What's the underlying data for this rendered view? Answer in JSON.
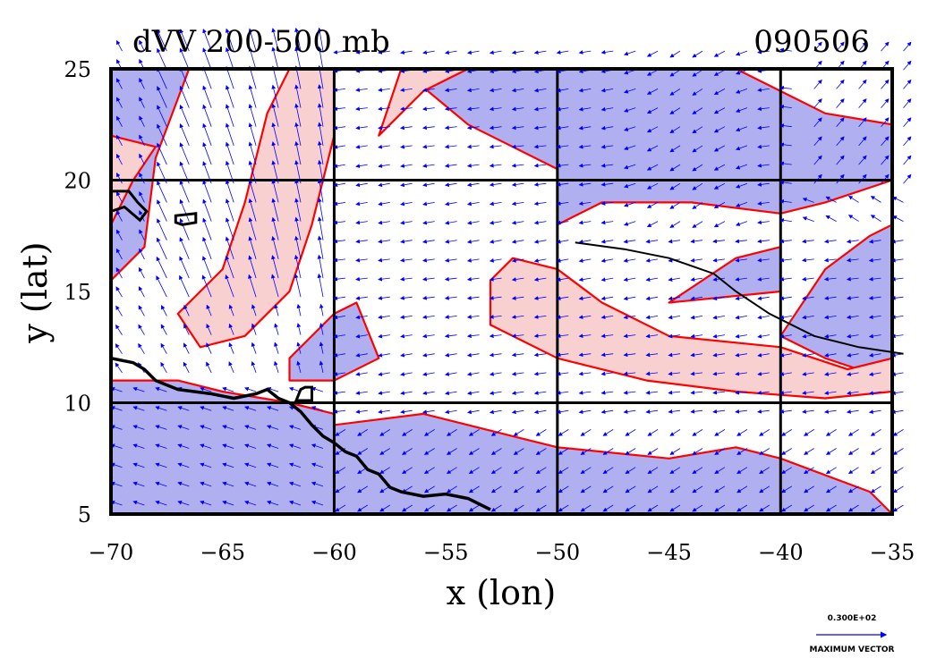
{
  "chart_data": {
    "type": "vector-contour-map",
    "title": "dVV 200-500 mb",
    "date_label": "090506",
    "xlabel": "x (lon)",
    "ylabel": "y (lat)",
    "xlim": [
      -70,
      -35
    ],
    "ylim": [
      5,
      25
    ],
    "x_ticks": [
      -70,
      -65,
      -60,
      -55,
      -50,
      -45,
      -40,
      -35
    ],
    "y_ticks": [
      5,
      10,
      15,
      20,
      25
    ],
    "x_tick_labels": [
      "−70",
      "−65",
      "−60",
      "−55",
      "−50",
      "−45",
      "−40",
      "−35"
    ],
    "y_tick_labels": [
      "5",
      "10",
      "15",
      "20",
      "25"
    ],
    "grid_lon": [
      -60,
      -50,
      -40
    ],
    "grid_lat": [
      10,
      20
    ],
    "vector_legend": {
      "magnitude_label": "0.300E+02",
      "caption": "MAXIMUM VECTOR"
    },
    "colors": {
      "negative_fill": "#b0b0f0",
      "positive_fill": "#f8d0d0",
      "contour": "#ff0000",
      "vector": "#0000ff",
      "coast": "#000000"
    },
    "negative_regions": [
      [
        [
          -70,
          15.5
        ],
        [
          -68.5,
          17
        ],
        [
          -68,
          21
        ],
        [
          -66.5,
          25
        ],
        [
          -70,
          25
        ]
      ],
      [
        [
          -70,
          5
        ],
        [
          -70,
          11
        ],
        [
          -67,
          11
        ],
        [
          -65,
          10.5
        ],
        [
          -62,
          10
        ],
        [
          -60,
          9.5
        ],
        [
          -60,
          5
        ]
      ],
      [
        [
          -60,
          5
        ],
        [
          -60,
          9
        ],
        [
          -56,
          9.5
        ],
        [
          -52,
          8.5
        ],
        [
          -50,
          8
        ],
        [
          -45,
          7.5
        ],
        [
          -42,
          8
        ],
        [
          -40,
          7.5
        ],
        [
          -36,
          6
        ],
        [
          -35,
          5
        ]
      ],
      [
        [
          -50,
          18
        ],
        [
          -50,
          25
        ],
        [
          -42,
          25
        ],
        [
          -38,
          23
        ],
        [
          -35,
          22.5
        ],
        [
          -35,
          20
        ],
        [
          -38,
          19
        ],
        [
          -40,
          18.5
        ],
        [
          -44,
          19
        ],
        [
          -48,
          19
        ]
      ],
      [
        [
          -40,
          13
        ],
        [
          -38,
          16
        ],
        [
          -36,
          17.5
        ],
        [
          -35,
          18
        ],
        [
          -35,
          11
        ],
        [
          -38,
          12
        ]
      ],
      [
        [
          -62,
          12
        ],
        [
          -60,
          14
        ],
        [
          -59,
          14.5
        ],
        [
          -58,
          12
        ],
        [
          -60,
          11
        ],
        [
          -62,
          11
        ]
      ],
      [
        [
          -57,
          25
        ],
        [
          -54,
          22.5
        ],
        [
          -50,
          20.5
        ],
        [
          -50,
          25
        ]
      ],
      [
        [
          -45,
          14.5
        ],
        [
          -42,
          16.5
        ],
        [
          -40,
          17
        ],
        [
          -40,
          15
        ]
      ]
    ],
    "positive_regions": [
      [
        [
          -67,
          14
        ],
        [
          -65,
          16
        ],
        [
          -64,
          19
        ],
        [
          -63,
          23
        ],
        [
          -62,
          25
        ],
        [
          -60,
          25
        ],
        [
          -60,
          22
        ],
        [
          -61,
          18
        ],
        [
          -62,
          15
        ],
        [
          -64,
          13
        ],
        [
          -66,
          12.5
        ]
      ],
      [
        [
          -58,
          22
        ],
        [
          -56,
          24
        ],
        [
          -54,
          25
        ],
        [
          -57,
          25
        ]
      ],
      [
        [
          -53,
          15.5
        ],
        [
          -52,
          16.5
        ],
        [
          -50,
          16
        ],
        [
          -48,
          14.5
        ],
        [
          -45,
          13
        ],
        [
          -40,
          12.5
        ],
        [
          -37,
          11.5
        ],
        [
          -35,
          12
        ],
        [
          -35,
          10.5
        ],
        [
          -38,
          10.2
        ],
        [
          -42,
          10.5
        ],
        [
          -46,
          11
        ],
        [
          -50,
          12
        ],
        [
          -53,
          13.5
        ]
      ],
      [
        [
          -70,
          18
        ],
        [
          -69,
          20
        ],
        [
          -68,
          21.5
        ],
        [
          -70,
          22
        ]
      ]
    ],
    "coastline": [
      [
        -70,
        12
      ],
      [
        -69,
        11.8
      ],
      [
        -68.5,
        11.5
      ],
      [
        -68,
        11
      ],
      [
        -67,
        10.6
      ],
      [
        -65.5,
        10.4
      ],
      [
        -64.5,
        10.2
      ],
      [
        -63.5,
        10.4
      ],
      [
        -63,
        10.6
      ],
      [
        -62.5,
        10.2
      ],
      [
        -62,
        10
      ],
      [
        -61.5,
        9.6
      ],
      [
        -61,
        9
      ],
      [
        -60.5,
        8.5
      ],
      [
        -60,
        8.2
      ],
      [
        -59.5,
        7.8
      ],
      [
        -59,
        7.6
      ],
      [
        -58.5,
        7
      ],
      [
        -58,
        6.8
      ],
      [
        -57.5,
        6.2
      ],
      [
        -57,
        6
      ],
      [
        -56,
        5.8
      ],
      [
        -55,
        5.9
      ],
      [
        -54,
        5.7
      ],
      [
        -53,
        5.2
      ]
    ],
    "storm_track": [
      [
        -49.2,
        17.2
      ],
      [
        -47,
        16.9
      ],
      [
        -45,
        16.5
      ],
      [
        -43,
        15.8
      ],
      [
        -42,
        15
      ],
      [
        -40.5,
        14
      ],
      [
        -38.5,
        13
      ],
      [
        -36.5,
        12.5
      ],
      [
        -34.5,
        12.2
      ]
    ],
    "islands": [
      [
        [
          -70,
          19.5
        ],
        [
          -69.2,
          19.5
        ],
        [
          -68.8,
          19
        ],
        [
          -68.4,
          18.6
        ],
        [
          -68.7,
          18.2
        ],
        [
          -69.4,
          18.8
        ],
        [
          -70,
          18.6
        ]
      ],
      [
        [
          -67.1,
          18.4
        ],
        [
          -66.2,
          18.5
        ],
        [
          -66.2,
          18.1
        ],
        [
          -66.8,
          18
        ],
        [
          -67.1,
          18.1
        ]
      ],
      [
        [
          -61.3,
          10.7
        ],
        [
          -61,
          10.7
        ],
        [
          -61,
          10.1
        ],
        [
          -61.7,
          10.1
        ],
        [
          -61.5,
          10.6
        ]
      ]
    ]
  }
}
